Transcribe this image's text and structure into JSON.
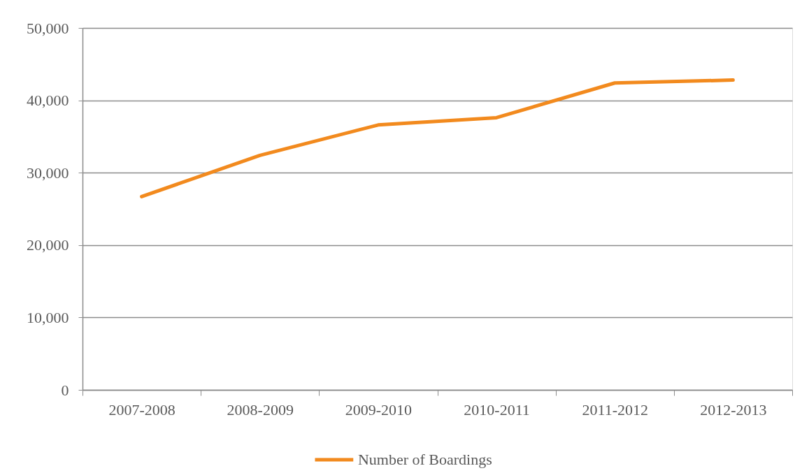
{
  "chart_data": {
    "type": "line",
    "categories": [
      "2007-2008",
      "2008-2009",
      "2009-2010",
      "2010-2011",
      "2011-2012",
      "2012-2013"
    ],
    "series": [
      {
        "name": "Number of Boardings",
        "color": "#f28a1e",
        "values": [
          26700,
          32400,
          36600,
          37600,
          42400,
          42800
        ]
      }
    ],
    "ylim": [
      0,
      50000
    ],
    "yticks": [
      {
        "value": 0,
        "label": "0"
      },
      {
        "value": 10000,
        "label": "10,000"
      },
      {
        "value": 20000,
        "label": "20,000"
      },
      {
        "value": 30000,
        "label": "30,000"
      },
      {
        "value": 40000,
        "label": "40,000"
      },
      {
        "value": 50000,
        "label": "50,000"
      }
    ],
    "grid": "y",
    "legend": "bottom",
    "marker": "none",
    "line_style": "solid"
  }
}
